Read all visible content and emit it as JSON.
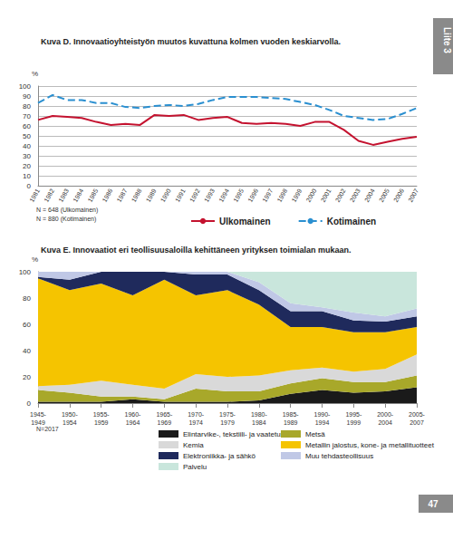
{
  "page": {
    "tab": "Liite 3",
    "number": "47"
  },
  "chart_data": [
    {
      "type": "line",
      "title": "Kuva D. Innovaatioyhteistyön muutos kuvattuna kolmen vuoden keskiarvolla.",
      "y_label": "%",
      "categories": [
        "1981",
        "1982",
        "1983",
        "1984",
        "1985",
        "1986",
        "1987",
        "1988",
        "1989",
        "1990",
        "1991",
        "1992",
        "1993",
        "1994",
        "1995",
        "1996",
        "1997",
        "1998",
        "1999",
        "2000",
        "2001",
        "2002",
        "2003",
        "2004",
        "2005",
        "2006",
        "2007"
      ],
      "series": [
        {
          "name": "Ulkomainen",
          "color": "#c4122f",
          "line_style": "solid",
          "values": [
            66,
            70,
            69,
            68,
            64,
            61,
            62,
            61,
            71,
            70,
            71,
            66,
            68,
            69,
            63,
            62,
            63,
            62,
            60,
            64,
            64,
            56,
            45,
            41,
            44,
            47,
            49
          ]
        },
        {
          "name": "Kotimainen",
          "color": "#2a8fd0",
          "line_style": "dashed",
          "values": [
            83,
            91,
            86,
            86,
            83,
            83,
            79,
            78,
            80,
            81,
            80,
            82,
            86,
            89,
            89,
            89,
            88,
            87,
            84,
            81,
            76,
            70,
            68,
            66,
            67,
            72,
            78
          ]
        }
      ],
      "ylim": [
        0,
        100
      ],
      "yticks": [
        0,
        10,
        20,
        30,
        40,
        50,
        60,
        70,
        80,
        90,
        100
      ],
      "grid": true,
      "legend": "bottom",
      "annotations": [
        "N = 648 (Ulkomainen)",
        "N = 880 (Kotimainen)"
      ]
    },
    {
      "type": "area",
      "title": "Kuva E. Innovaatiot eri teollisuusaloilla kehittäneen yrityksen toimialan mukaan.",
      "y_label": "%",
      "stacked": true,
      "categories": [
        "1945-1949",
        "1950-1954",
        "1955-1959",
        "1960-1964",
        "1965-1969",
        "1970-1974",
        "1975-1979",
        "1980-1984",
        "1985-1989",
        "1990-1994",
        "1995-1999",
        "2000-2004",
        "2005-2007"
      ],
      "series": [
        {
          "name": "Elintarvike-, tekstiili- ja vaatetus",
          "color": "#1a1a1a",
          "values": [
            1,
            1,
            1,
            3,
            1,
            1,
            1,
            2,
            7,
            10,
            8,
            9,
            12
          ]
        },
        {
          "name": "Metsä",
          "color": "#a8a82a",
          "values": [
            9,
            7,
            4,
            2,
            2,
            10,
            8,
            7,
            8,
            9,
            8,
            7,
            9
          ]
        },
        {
          "name": "Kemia",
          "color": "#d9d9d9",
          "values": [
            3,
            6,
            12,
            9,
            8,
            11,
            11,
            12,
            10,
            8,
            8,
            10,
            16
          ]
        },
        {
          "name": "Metallin jalostus, kone- ja metallituotteet",
          "color": "#f5c400",
          "values": [
            82,
            72,
            74,
            68,
            83,
            60,
            66,
            54,
            33,
            31,
            30,
            28,
            21
          ]
        },
        {
          "name": "Elektroniikka- ja sähkö",
          "color": "#1f2a5c",
          "values": [
            1,
            8,
            9,
            18,
            6,
            16,
            12,
            11,
            12,
            12,
            9,
            8,
            8
          ]
        },
        {
          "name": "Muu tehdasteollisuus",
          "color": "#c0c8e6",
          "values": [
            4,
            6,
            0,
            0,
            0,
            2,
            2,
            6,
            6,
            3,
            6,
            4,
            6
          ]
        },
        {
          "name": "Palvelu",
          "color": "#c9e6dc",
          "values": [
            0,
            0,
            0,
            0,
            0,
            0,
            0,
            8,
            24,
            27,
            31,
            34,
            28
          ]
        }
      ],
      "ylim": [
        0,
        100
      ],
      "yticks": [
        0,
        20,
        40,
        60,
        80,
        100
      ],
      "grid": false,
      "legend": "bottom",
      "annotations": [
        "N=2017"
      ]
    }
  ]
}
